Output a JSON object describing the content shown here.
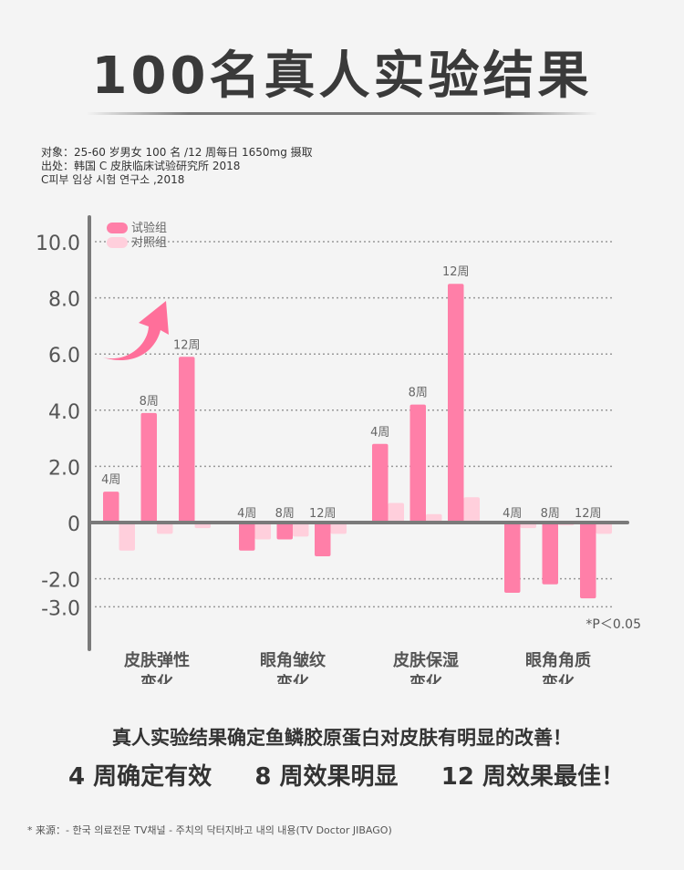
{
  "title": "100名真人实验结果",
  "meta": {
    "subject": "对象：25-60 岁男女 100 名 /12 周每日 1650mg 摄取",
    "source_line": "出处：韩国 C 皮肤临床试验研究所 2018",
    "source_korean": "C피부 임상 시험 연구소 ,2018"
  },
  "chart_data": {
    "type": "bar",
    "categories": [
      "皮肤弹性\n变化",
      "眼角皱纹\n变化",
      "皮肤保湿\n变化",
      "眼角角质\n变化"
    ],
    "category_lines": [
      [
        "皮肤弹性",
        "变化"
      ],
      [
        "眼角皱纹",
        "变化"
      ],
      [
        "皮肤保湿",
        "变化"
      ],
      [
        "眼角角质",
        "变化"
      ]
    ],
    "periods": [
      "4周",
      "8周",
      "12周"
    ],
    "series": [
      {
        "name": "试验组",
        "color": "#ff7fa8",
        "values": [
          [
            1.1,
            3.9,
            5.9
          ],
          [
            -1.0,
            -0.6,
            -1.2
          ],
          [
            2.8,
            4.2,
            8.5
          ],
          [
            -2.5,
            -2.2,
            -2.7
          ]
        ]
      },
      {
        "name": "对照组",
        "color": "#ffcfdc",
        "values": [
          [
            -1.0,
            -0.4,
            -0.2
          ],
          [
            -0.6,
            -0.5,
            -0.4
          ],
          [
            0.7,
            0.3,
            0.9
          ],
          [
            -0.2,
            -0.1,
            -0.4
          ]
        ]
      }
    ],
    "yticks": [
      "10.0",
      "8.0",
      "6.0",
      "4.0",
      "2.0",
      "0",
      "-2.0",
      "-3.0"
    ],
    "ylim": [
      -3.8,
      10.6
    ],
    "grid": true,
    "legend": "top-left",
    "annotation": "*P＜0.05",
    "arrow_color": "#ff6f9a"
  },
  "summary": "真人实验结果确定鱼鳞胶原蛋白对皮肤有明显的改善！",
  "effects": [
    "4 周确定有效",
    "8 周效果明显",
    "12 周效果最佳！"
  ],
  "footnote": "* 来源：- 한국 의료전문 TV채널 - 주치의 닥터지바고 내의 내용(TV Doctor JIBAGO)"
}
